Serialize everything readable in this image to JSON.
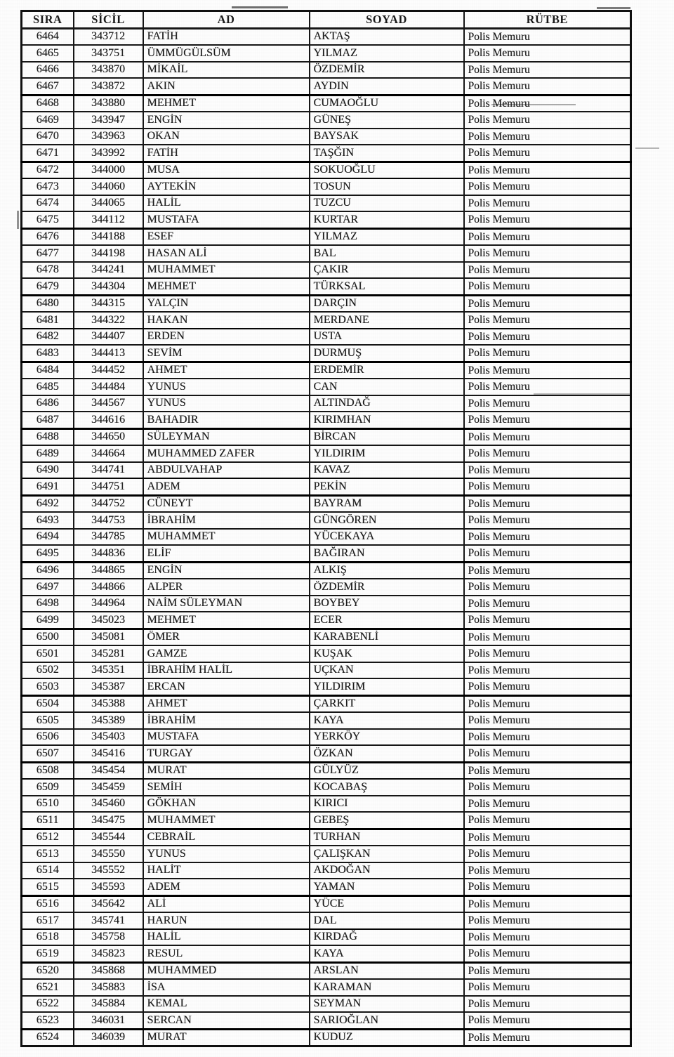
{
  "document": {
    "kind": "scanned-personnel-roster",
    "rank_default": "Polis Memuru"
  },
  "colors": {
    "paper": "#fefefe",
    "ink": "#1b1b1b",
    "border": "#161616"
  },
  "table": {
    "columns": [
      {
        "key": "sira",
        "label": "SIRA"
      },
      {
        "key": "sicil",
        "label": "SİCİL"
      },
      {
        "key": "ad",
        "label": "AD"
      },
      {
        "key": "soyad",
        "label": "SOYAD"
      },
      {
        "key": "rutbe",
        "label": "RÜTBE"
      }
    ],
    "rows": [
      {
        "sira": "6464",
        "sicil": "343712",
        "ad": "FATİH",
        "soyad": "AKTAŞ",
        "rutbe": "Polis Memuru"
      },
      {
        "sira": "6465",
        "sicil": "343751",
        "ad": "ÜMMÜGÜLSÜM",
        "soyad": "YILMAZ",
        "rutbe": "Polis Memuru"
      },
      {
        "sira": "6466",
        "sicil": "343870",
        "ad": "MİKAİL",
        "soyad": "ÖZDEMİR",
        "rutbe": "Polis Memuru"
      },
      {
        "sira": "6467",
        "sicil": "343872",
        "ad": "AKIN",
        "soyad": "AYDIN",
        "rutbe": "Polis Memuru"
      },
      {
        "sira": "6468",
        "sicil": "343880",
        "ad": "MEHMET",
        "soyad": "CUMAOĞLU",
        "rutbe": "Polis Memuru"
      },
      {
        "sira": "6469",
        "sicil": "343947",
        "ad": "ENGİN",
        "soyad": "GÜNEŞ",
        "rutbe": "Polis Memuru"
      },
      {
        "sira": "6470",
        "sicil": "343963",
        "ad": "OKAN",
        "soyad": "BAYSAK",
        "rutbe": "Polis Memuru"
      },
      {
        "sira": "6471",
        "sicil": "343992",
        "ad": "FATİH",
        "soyad": "TAŞĞIN",
        "rutbe": "Polis Memuru"
      },
      {
        "sira": "6472",
        "sicil": "344000",
        "ad": "MUSA",
        "soyad": "SOKUOĞLU",
        "rutbe": "Polis Memuru"
      },
      {
        "sira": "6473",
        "sicil": "344060",
        "ad": "AYTEKİN",
        "soyad": "TOSUN",
        "rutbe": "Polis Memuru"
      },
      {
        "sira": "6474",
        "sicil": "344065",
        "ad": "HALİL",
        "soyad": "TUZCU",
        "rutbe": "Polis Memuru"
      },
      {
        "sira": "6475",
        "sicil": "344112",
        "ad": "MUSTAFA",
        "soyad": "KURTAR",
        "rutbe": "Polis Memuru"
      },
      {
        "sira": "6476",
        "sicil": "344188",
        "ad": "ESEF",
        "soyad": "YILMAZ",
        "rutbe": "Polis Memuru"
      },
      {
        "sira": "6477",
        "sicil": "344198",
        "ad": "HASAN ALİ",
        "soyad": "BAL",
        "rutbe": "Polis Memuru"
      },
      {
        "sira": "6478",
        "sicil": "344241",
        "ad": "MUHAMMET",
        "soyad": "ÇAKIR",
        "rutbe": "Polis Memuru"
      },
      {
        "sira": "6479",
        "sicil": "344304",
        "ad": "MEHMET",
        "soyad": "TÜRKSAL",
        "rutbe": "Polis Memuru"
      },
      {
        "sira": "6480",
        "sicil": "344315",
        "ad": "YALÇIN",
        "soyad": "DARÇIN",
        "rutbe": "Polis Memuru"
      },
      {
        "sira": "6481",
        "sicil": "344322",
        "ad": "HAKAN",
        "soyad": "MERDANE",
        "rutbe": "Polis Memuru"
      },
      {
        "sira": "6482",
        "sicil": "344407",
        "ad": "ERDEN",
        "soyad": "USTA",
        "rutbe": "Polis Memuru"
      },
      {
        "sira": "6483",
        "sicil": "344413",
        "ad": "SEVİM",
        "soyad": "DURMUŞ",
        "rutbe": "Polis Memuru"
      },
      {
        "sira": "6484",
        "sicil": "344452",
        "ad": "AHMET",
        "soyad": "ERDEMİR",
        "rutbe": "Polis Memuru"
      },
      {
        "sira": "6485",
        "sicil": "344484",
        "ad": "YUNUS",
        "soyad": "CAN",
        "rutbe": "Polis Memuru"
      },
      {
        "sira": "6486",
        "sicil": "344567",
        "ad": "YUNUS",
        "soyad": "ALTINDAĞ",
        "rutbe": "Polis Memuru"
      },
      {
        "sira": "6487",
        "sicil": "344616",
        "ad": "BAHADIR",
        "soyad": "KIRIMHAN",
        "rutbe": "Polis Memuru"
      },
      {
        "sira": "6488",
        "sicil": "344650",
        "ad": "SÜLEYMAN",
        "soyad": "BİRCAN",
        "rutbe": "Polis Memuru"
      },
      {
        "sira": "6489",
        "sicil": "344664",
        "ad": "MUHAMMED ZAFER",
        "soyad": "YILDIRIM",
        "rutbe": "Polis Memuru"
      },
      {
        "sira": "6490",
        "sicil": "344741",
        "ad": "ABDULVAHAP",
        "soyad": "KAVAZ",
        "rutbe": "Polis Memuru"
      },
      {
        "sira": "6491",
        "sicil": "344751",
        "ad": "ADEM",
        "soyad": "PEKİN",
        "rutbe": "Polis Memuru"
      },
      {
        "sira": "6492",
        "sicil": "344752",
        "ad": "CÜNEYT",
        "soyad": "BAYRAM",
        "rutbe": "Polis Memuru"
      },
      {
        "sira": "6493",
        "sicil": "344753",
        "ad": "İBRAHİM",
        "soyad": "GÜNGÖREN",
        "rutbe": "Polis Memuru"
      },
      {
        "sira": "6494",
        "sicil": "344785",
        "ad": "MUHAMMET",
        "soyad": "YÜCEKAYA",
        "rutbe": "Polis Memuru"
      },
      {
        "sira": "6495",
        "sicil": "344836",
        "ad": "ELİF",
        "soyad": "BAĞIRAN",
        "rutbe": "Polis Memuru"
      },
      {
        "sira": "6496",
        "sicil": "344865",
        "ad": "ENGİN",
        "soyad": "ALKIŞ",
        "rutbe": "Polis Memuru"
      },
      {
        "sira": "6497",
        "sicil": "344866",
        "ad": "ALPER",
        "soyad": "ÖZDEMİR",
        "rutbe": "Polis Memuru"
      },
      {
        "sira": "6498",
        "sicil": "344964",
        "ad": "NAİM SÜLEYMAN",
        "soyad": "BOYBEY",
        "rutbe": "Polis Memuru"
      },
      {
        "sira": "6499",
        "sicil": "345023",
        "ad": "MEHMET",
        "soyad": "ECER",
        "rutbe": "Polis Memuru"
      },
      {
        "sira": "6500",
        "sicil": "345081",
        "ad": "ÖMER",
        "soyad": "KARABENLİ",
        "rutbe": "Polis Memuru"
      },
      {
        "sira": "6501",
        "sicil": "345281",
        "ad": "GAMZE",
        "soyad": "KUŞAK",
        "rutbe": "Polis Memuru"
      },
      {
        "sira": "6502",
        "sicil": "345351",
        "ad": "İBRAHİM HALİL",
        "soyad": "UÇKAN",
        "rutbe": "Polis Memuru"
      },
      {
        "sira": "6503",
        "sicil": "345387",
        "ad": "ERCAN",
        "soyad": "YILDIRIM",
        "rutbe": "Polis Memuru"
      },
      {
        "sira": "6504",
        "sicil": "345388",
        "ad": "AHMET",
        "soyad": "ÇARKIT",
        "rutbe": "Polis Memuru"
      },
      {
        "sira": "6505",
        "sicil": "345389",
        "ad": "İBRAHİM",
        "soyad": "KAYA",
        "rutbe": "Polis Memuru"
      },
      {
        "sira": "6506",
        "sicil": "345403",
        "ad": "MUSTAFA",
        "soyad": "YERKÖY",
        "rutbe": "Polis Memuru"
      },
      {
        "sira": "6507",
        "sicil": "345416",
        "ad": "TURGAY",
        "soyad": "ÖZKAN",
        "rutbe": "Polis Memuru"
      },
      {
        "sira": "6508",
        "sicil": "345454",
        "ad": "MURAT",
        "soyad": "GÜLYÜZ",
        "rutbe": "Polis Memuru"
      },
      {
        "sira": "6509",
        "sicil": "345459",
        "ad": "SEMİH",
        "soyad": "KOCABAŞ",
        "rutbe": "Polis Memuru"
      },
      {
        "sira": "6510",
        "sicil": "345460",
        "ad": "GÖKHAN",
        "soyad": "KIRICI",
        "rutbe": "Polis Memuru"
      },
      {
        "sira": "6511",
        "sicil": "345475",
        "ad": "MUHAMMET",
        "soyad": "GEBEŞ",
        "rutbe": "Polis Memuru"
      },
      {
        "sira": "6512",
        "sicil": "345544",
        "ad": "CEBRAİL",
        "soyad": "TURHAN",
        "rutbe": "Polis Memuru"
      },
      {
        "sira": "6513",
        "sicil": "345550",
        "ad": "YUNUS",
        "soyad": "ÇALIŞKAN",
        "rutbe": "Polis Memuru"
      },
      {
        "sira": "6514",
        "sicil": "345552",
        "ad": "HALİT",
        "soyad": "AKDOĞAN",
        "rutbe": "Polis Memuru"
      },
      {
        "sira": "6515",
        "sicil": "345593",
        "ad": "ADEM",
        "soyad": "YAMAN",
        "rutbe": "Polis Memuru"
      },
      {
        "sira": "6516",
        "sicil": "345642",
        "ad": "ALİ",
        "soyad": "YÜCE",
        "rutbe": "Polis Memuru"
      },
      {
        "sira": "6517",
        "sicil": "345741",
        "ad": "HARUN",
        "soyad": "DAL",
        "rutbe": "Polis Memuru"
      },
      {
        "sira": "6518",
        "sicil": "345758",
        "ad": "HALİL",
        "soyad": "KIRDAĞ",
        "rutbe": "Polis Memuru"
      },
      {
        "sira": "6519",
        "sicil": "345823",
        "ad": "RESUL",
        "soyad": "KAYA",
        "rutbe": "Polis Memuru"
      },
      {
        "sira": "6520",
        "sicil": "345868",
        "ad": "MUHAMMED",
        "soyad": "ARSLAN",
        "rutbe": "Polis Memuru"
      },
      {
        "sira": "6521",
        "sicil": "345883",
        "ad": "İSA",
        "soyad": "KARAMAN",
        "rutbe": "Polis Memuru"
      },
      {
        "sira": "6522",
        "sicil": "345884",
        "ad": "KEMAL",
        "soyad": "SEYMAN",
        "rutbe": "Polis Memuru"
      },
      {
        "sira": "6523",
        "sicil": "346031",
        "ad": "SERCAN",
        "soyad": "SARIOĞLAN",
        "rutbe": "Polis Memuru"
      },
      {
        "sira": "6524",
        "sicil": "346039",
        "ad": "MURAT",
        "soyad": "KUDUZ",
        "rutbe": "Polis Memuru"
      }
    ]
  }
}
